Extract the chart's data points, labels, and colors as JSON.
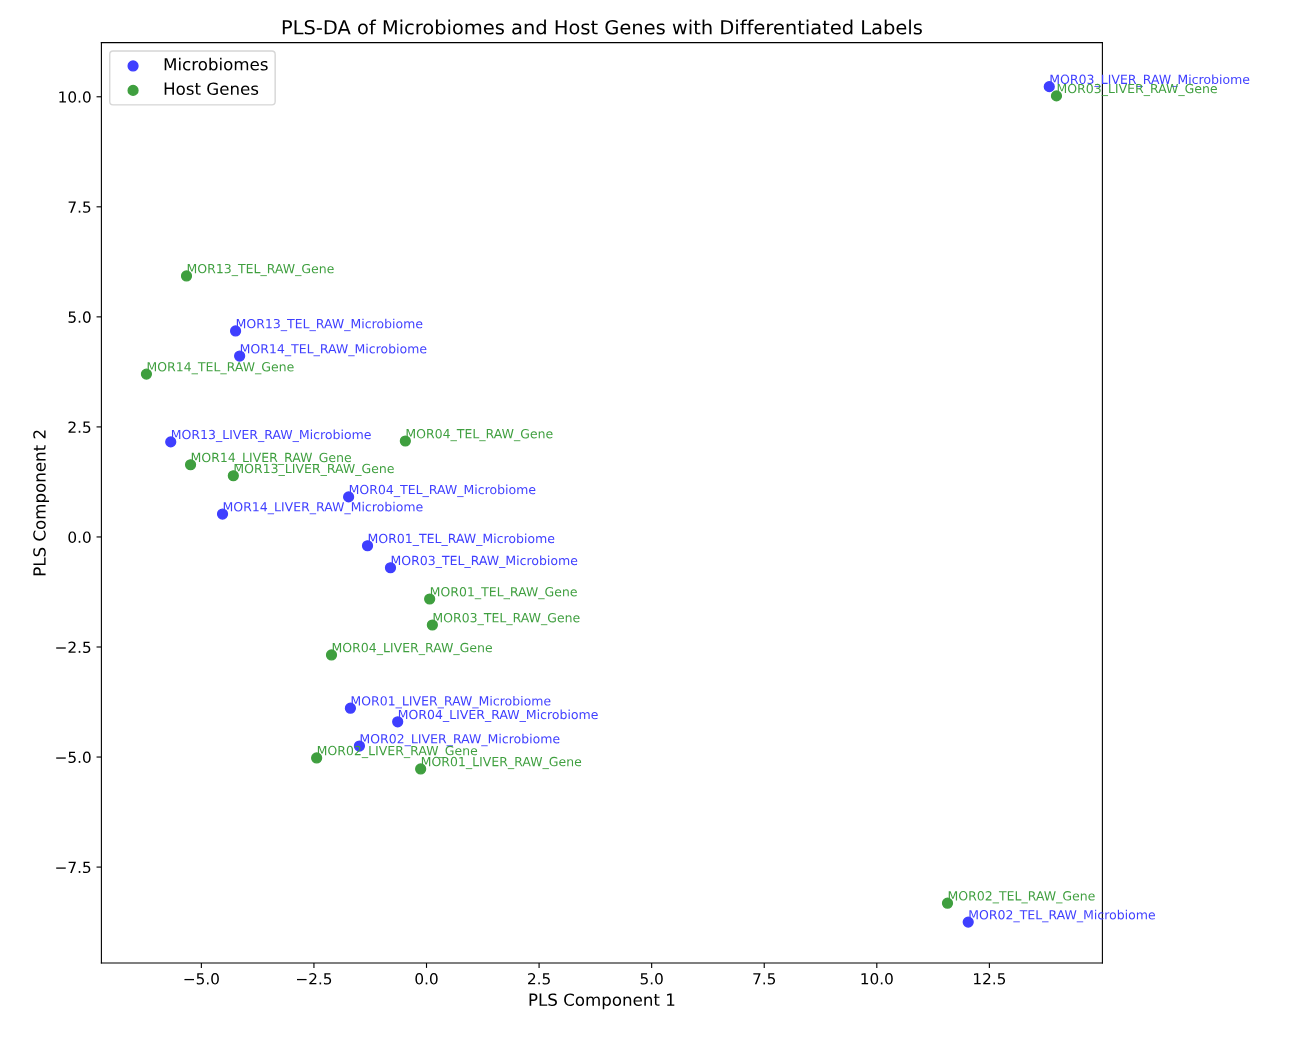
{
  "chart_data": {
    "type": "scatter",
    "title": "PLS-DA of Microbiomes and Host Genes with Differentiated Labels",
    "xlabel": "PLS Component 1",
    "ylabel": "PLS Component 2",
    "xlim": [
      -7.22,
      15.01
    ],
    "ylim": [
      -9.68,
      11.23
    ],
    "xticks": [
      {
        "value": -5,
        "label": "−5.0"
      },
      {
        "value": -2.5,
        "label": "−2.5"
      },
      {
        "value": 0,
        "label": "0.0"
      },
      {
        "value": 2.5,
        "label": "2.5"
      },
      {
        "value": 5,
        "label": "5.0"
      },
      {
        "value": 7.5,
        "label": "7.5"
      },
      {
        "value": 10,
        "label": "10.0"
      },
      {
        "value": 12.5,
        "label": "12.5"
      }
    ],
    "yticks": [
      {
        "value": -7.5,
        "label": "−7.5"
      },
      {
        "value": -5,
        "label": "−5.0"
      },
      {
        "value": -2.5,
        "label": "−2.5"
      },
      {
        "value": 0,
        "label": "0.0"
      },
      {
        "value": 2.5,
        "label": "2.5"
      },
      {
        "value": 5,
        "label": "5.0"
      },
      {
        "value": 7.5,
        "label": "7.5"
      },
      {
        "value": 10,
        "label": "10.0"
      }
    ],
    "grid": false,
    "legend": "top left",
    "marker": "circle",
    "series": [
      {
        "name": "Microbiomes",
        "color": "#3f3fff",
        "x": [
          13.83,
          -4.24,
          -4.15,
          -5.68,
          -1.73,
          -4.53,
          -1.31,
          -0.8,
          -1.69,
          -0.64,
          -1.49,
          12.03
        ],
        "values": [
          10.23,
          4.68,
          4.11,
          2.16,
          0.91,
          0.52,
          -0.2,
          -0.7,
          -3.89,
          -4.2,
          -4.75,
          -8.75
        ]
      },
      {
        "name": "Host Genes",
        "color": "#3f9f3f",
        "x": [
          13.99,
          -5.33,
          -6.22,
          -0.47,
          -5.24,
          -4.29,
          0.07,
          0.13,
          -2.11,
          -2.44,
          -0.13,
          11.57
        ],
        "values": [
          10.02,
          5.93,
          3.7,
          2.18,
          1.64,
          1.39,
          -1.41,
          -2.0,
          -2.68,
          -5.02,
          -5.27,
          -8.32
        ]
      }
    ],
    "annotations": [
      {
        "text": "MOR03_LIVER_RAW_Microbiome",
        "x": 13.83,
        "y": 10.23
      },
      {
        "text": "MOR13_TEL_RAW_Microbiome",
        "x": -4.24,
        "y": 4.68
      },
      {
        "text": "MOR14_TEL_RAW_Microbiome",
        "x": -4.15,
        "y": 4.11
      },
      {
        "text": "MOR13_LIVER_RAW_Microbiome",
        "x": -5.68,
        "y": 2.16
      },
      {
        "text": "MOR04_TEL_RAW_Microbiome",
        "x": -1.73,
        "y": 0.91
      },
      {
        "text": "MOR14_LIVER_RAW_Microbiome",
        "x": -4.53,
        "y": 0.52
      },
      {
        "text": "MOR01_TEL_RAW_Microbiome",
        "x": -1.31,
        "y": -0.2
      },
      {
        "text": "MOR03_TEL_RAW_Microbiome",
        "x": -0.8,
        "y": -0.7
      },
      {
        "text": "MOR01_LIVER_RAW_Microbiome",
        "x": -1.69,
        "y": -3.89
      },
      {
        "text": "MOR04_LIVER_RAW_Microbiome",
        "x": -0.64,
        "y": -4.2
      },
      {
        "text": "MOR02_LIVER_RAW_Microbiome",
        "x": -1.49,
        "y": -4.75
      },
      {
        "text": "MOR02_TEL_RAW_Microbiome",
        "x": 12.03,
        "y": -8.75
      },
      {
        "text": "MOR03_LIVER_RAW_Gene",
        "x": 13.99,
        "y": 10.02
      },
      {
        "text": "MOR13_TEL_RAW_Gene",
        "x": -5.33,
        "y": 5.93
      },
      {
        "text": "MOR14_TEL_RAW_Gene",
        "x": -6.22,
        "y": 3.7
      },
      {
        "text": "MOR04_TEL_RAW_Gene",
        "x": -0.47,
        "y": 2.18
      },
      {
        "text": "MOR14_LIVER_RAW_Gene",
        "x": -5.24,
        "y": 1.64
      },
      {
        "text": "MOR13_LIVER_RAW_Gene",
        "x": -4.29,
        "y": 1.39
      },
      {
        "text": "MOR01_TEL_RAW_Gene",
        "x": 0.07,
        "y": -1.41
      },
      {
        "text": "MOR03_TEL_RAW_Gene",
        "x": 0.13,
        "y": -2.0
      },
      {
        "text": "MOR04_LIVER_RAW_Gene",
        "x": -2.11,
        "y": -2.68
      },
      {
        "text": "MOR02_LIVER_RAW_Gene",
        "x": -2.44,
        "y": -5.02
      },
      {
        "text": "MOR01_LIVER_RAW_Gene",
        "x": -0.13,
        "y": -5.27
      },
      {
        "text": "MOR02_TEL_RAW_Gene",
        "x": 11.57,
        "y": -8.32
      }
    ]
  }
}
